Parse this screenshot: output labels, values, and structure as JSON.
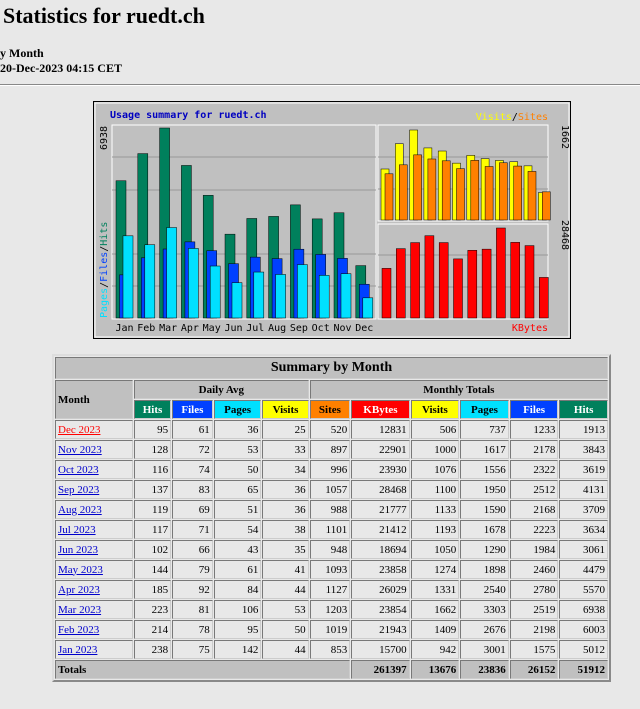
{
  "header": {
    "title": "Statistics for ruedt.ch",
    "subtitle": "y Month",
    "generated": "20-Dec-2023 04:15 CET"
  },
  "graph": {
    "title": "Usage summary for ruedt.ch",
    "legend_left": [
      "Pages",
      "Files",
      "Hits"
    ],
    "legend_right": [
      "Visits",
      "Sites"
    ],
    "kbytes_label": "KBytes",
    "hits_max": 6938,
    "visits_max": 1662,
    "kbytes_max": 28468,
    "months": [
      "Jan",
      "Feb",
      "Mar",
      "Apr",
      "May",
      "Jun",
      "Jul",
      "Aug",
      "Sep",
      "Oct",
      "Nov",
      "Dec"
    ]
  },
  "table": {
    "title": "Summary by Month",
    "month_header": "Month",
    "group_headers": [
      "Daily Avg",
      "Monthly Totals"
    ],
    "columns": [
      "Hits",
      "Files",
      "Pages",
      "Visits",
      "Sites",
      "KBytes",
      "Visits",
      "Pages",
      "Files",
      "Hits"
    ],
    "rows": [
      [
        "Dec 2023",
        95,
        61,
        36,
        25,
        520,
        12831,
        506,
        737,
        1233,
        1913
      ],
      [
        "Nov 2023",
        128,
        72,
        53,
        33,
        897,
        22901,
        1000,
        1617,
        2178,
        3843
      ],
      [
        "Oct 2023",
        116,
        74,
        50,
        34,
        996,
        23930,
        1076,
        1556,
        2322,
        3619
      ],
      [
        "Sep 2023",
        137,
        83,
        65,
        36,
        1057,
        28468,
        1100,
        1950,
        2512,
        4131
      ],
      [
        "Aug 2023",
        119,
        69,
        51,
        36,
        988,
        21777,
        1133,
        1590,
        2168,
        3709
      ],
      [
        "Jul 2023",
        117,
        71,
        54,
        38,
        1101,
        21412,
        1193,
        1678,
        2223,
        3634
      ],
      [
        "Jun 2023",
        102,
        66,
        43,
        35,
        948,
        18694,
        1050,
        1290,
        1984,
        3061
      ],
      [
        "May 2023",
        144,
        79,
        61,
        41,
        1093,
        23858,
        1274,
        1898,
        2460,
        4479
      ],
      [
        "Apr 2023",
        185,
        92,
        84,
        44,
        1127,
        26029,
        1331,
        2540,
        2780,
        5570
      ],
      [
        "Mar 2023",
        223,
        81,
        106,
        53,
        1203,
        23854,
        1662,
        3303,
        2519,
        6938
      ],
      [
        "Feb 2023",
        214,
        78,
        95,
        50,
        1019,
        21943,
        1409,
        2676,
        2198,
        6003
      ],
      [
        "Jan 2023",
        238,
        75,
        142,
        44,
        853,
        15700,
        942,
        3001,
        1575,
        5012
      ]
    ],
    "totals": {
      "label": "Totals",
      "values": [
        261397,
        13676,
        23836,
        26152,
        51912
      ]
    }
  }
}
